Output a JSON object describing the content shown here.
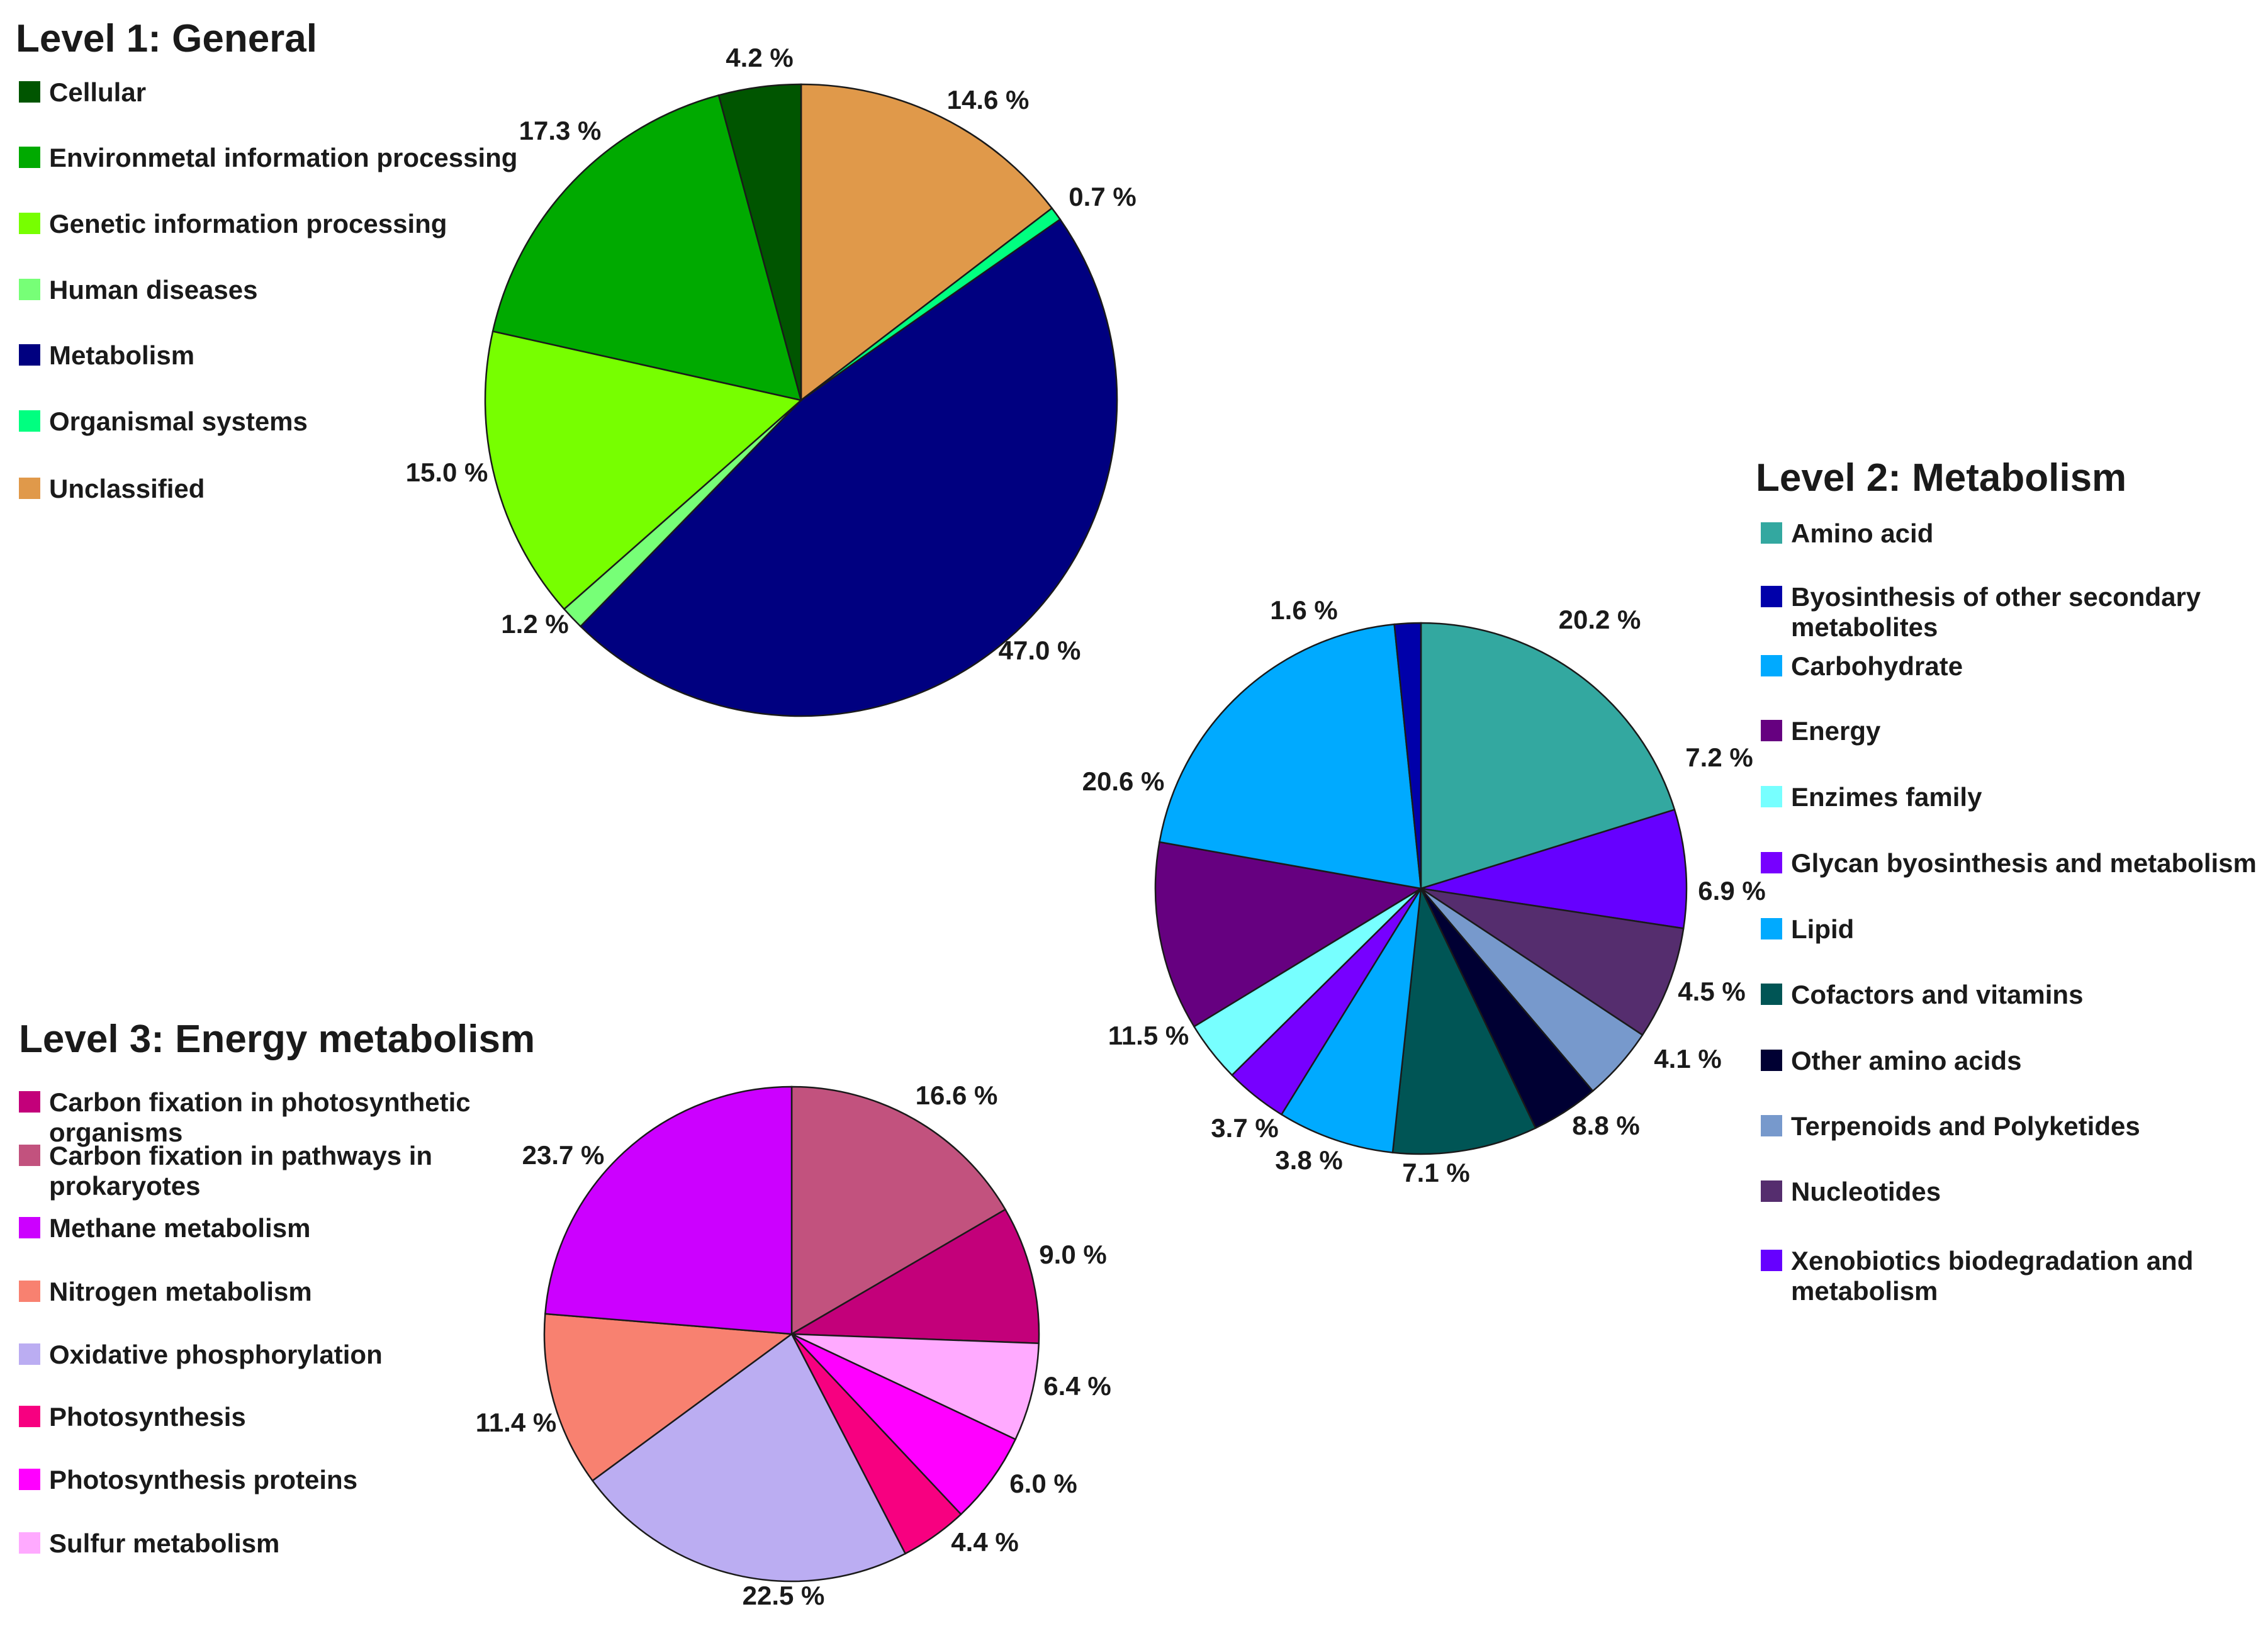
{
  "chart_data": [
    {
      "type": "pie",
      "title": "Level 1: General",
      "categories": [
        "Cellular",
        "Environmetal information processing",
        "Genetic information processing",
        "Human diseases",
        "Metabolism",
        "Organismal systems",
        "Unclassified"
      ],
      "legend": [
        {
          "label": "Cellular",
          "color": "#005500"
        },
        {
          "label": "Environmetal information processing",
          "color": "#00AA00"
        },
        {
          "label": "Genetic information processing",
          "color": "#77FF00"
        },
        {
          "label": "Human diseases",
          "color": "#77FF77"
        },
        {
          "label": "Metabolism",
          "color": "#000080"
        },
        {
          "label": "Organismal systems",
          "color": "#00FF80"
        },
        {
          "label": "Unclassified",
          "color": "#E0994A"
        }
      ],
      "slices": [
        {
          "category": "Unclassified",
          "value": 14.6,
          "label": "14.6 %",
          "color": "#E0994A"
        },
        {
          "category": "Organismal systems",
          "value": 0.7,
          "label": "0.7 %",
          "color": "#00FF80"
        },
        {
          "category": "Metabolism",
          "value": 47.0,
          "label": "47.0 %",
          "color": "#000080"
        },
        {
          "category": "Human diseases",
          "value": 1.2,
          "label": "1.2 %",
          "color": "#77FF77"
        },
        {
          "category": "Genetic information processing",
          "value": 15.0,
          "label": "15.0 %",
          "color": "#77FF00"
        },
        {
          "category": "Environmetal information processing",
          "value": 17.3,
          "label": "17.3 %",
          "color": "#00AA00"
        },
        {
          "category": "Cellular",
          "value": 4.2,
          "label": "4.2 %",
          "color": "#005500"
        }
      ]
    },
    {
      "type": "pie",
      "title": "Level 2: Metabolism",
      "categories": [
        "Amino acid",
        "Byosinthesis of other secondary metabolites",
        "Carbohydrate",
        "Energy",
        "Enzimes family",
        "Glycan byosinthesis and metabolism",
        "Lipid",
        "Cofactors and vitamins",
        "Other amino acids",
        "Terpenoids and Polyketides",
        "Nucleotides",
        "Xenobiotics biodegradation and metabolism"
      ],
      "legend": [
        {
          "label": "Amino acid",
          "color": "#33A8A0"
        },
        {
          "label": "Byosinthesis of other secondary metabolites",
          "color": "#0000AA"
        },
        {
          "label": "Carbohydrate",
          "color": "#00AAFF"
        },
        {
          "label": "Energy",
          "color": "#660080"
        },
        {
          "label": "Enzimes family",
          "color": "#77FFFF"
        },
        {
          "label": "Glycan byosinthesis and metabolism",
          "color": "#7700FF"
        },
        {
          "label": "Lipid",
          "color": "#00AAFF"
        },
        {
          "label": "Cofactors and vitamins",
          "color": "#005555"
        },
        {
          "label": "Other amino acids",
          "color": "#000033"
        },
        {
          "label": "Terpenoids and Polyketides",
          "color": "#7799CC"
        },
        {
          "label": "Nucleotides",
          "color": "#552D6E"
        },
        {
          "label": "Xenobiotics biodegradation and metabolism",
          "color": "#6600FF"
        }
      ],
      "slices": [
        {
          "category": "Amino acid",
          "value": 20.2,
          "label": "20.2 %",
          "color": "#33A8A0"
        },
        {
          "category": "Xenobiotics biodegradation and metabolism",
          "value": 7.2,
          "label": "7.2 %",
          "color": "#6600FF"
        },
        {
          "category": "Nucleotides",
          "value": 6.9,
          "label": "6.9 %",
          "color": "#552D6E"
        },
        {
          "category": "Terpenoids and Polyketides",
          "value": 4.5,
          "label": "4.5 %",
          "color": "#7799CC"
        },
        {
          "category": "Other amino acids",
          "value": 4.1,
          "label": "4.1 %",
          "color": "#000033"
        },
        {
          "category": "Cofactors and vitamins",
          "value": 8.8,
          "label": "8.8 %",
          "color": "#005555"
        },
        {
          "category": "Lipid",
          "value": 7.1,
          "label": "7.1 %",
          "color": "#00AAFF"
        },
        {
          "category": "Glycan byosinthesis and metabolism",
          "value": 3.8,
          "label": "3.8 %",
          "color": "#7700FF"
        },
        {
          "category": "Enzimes family",
          "value": 3.7,
          "label": "3.7 %",
          "color": "#77FFFF"
        },
        {
          "category": "Energy",
          "value": 11.5,
          "label": "11.5 %",
          "color": "#660080"
        },
        {
          "category": "Carbohydrate",
          "value": 20.6,
          "label": "20.6 %",
          "color": "#00AAFF"
        },
        {
          "category": "Byosinthesis of other secondary metabolites",
          "value": 1.6,
          "label": "1.6 %",
          "color": "#0000AA"
        }
      ]
    },
    {
      "type": "pie",
      "title": "Level 3: Energy metabolism",
      "categories": [
        "Carbon fixation in photosynthetic organisms",
        "Carbon fixation in pathways in prokaryotes",
        "Methane metabolism",
        "Nitrogen metabolism",
        "Oxidative phosphorylation",
        "Photosynthesis",
        "Photosynthesis proteins",
        "Sulfur metabolism"
      ],
      "legend": [
        {
          "label": "Carbon fixation in photosynthetic organisms",
          "color": "#C3007A"
        },
        {
          "label": "Carbon fixation in pathways in prokaryotes",
          "color": "#C2527E"
        },
        {
          "label": "Methane metabolism",
          "color": "#CC00FF"
        },
        {
          "label": "Nitrogen metabolism",
          "color": "#F88170"
        },
        {
          "label": "Oxidative phosphorylation",
          "color": "#BBADF2"
        },
        {
          "label": "Photosynthesis",
          "color": "#F70080"
        },
        {
          "label": "Photosynthesis proteins",
          "color": "#FF00FF"
        },
        {
          "label": "Sulfur metabolism",
          "color": "#FFAAFF"
        }
      ],
      "slices": [
        {
          "category": "Carbon fixation in pathways in prokaryotes",
          "value": 16.6,
          "label": "16.6 %",
          "color": "#C2527E"
        },
        {
          "category": "Carbon fixation in photosynthetic organisms",
          "value": 9.0,
          "label": "9.0 %",
          "color": "#C3007A"
        },
        {
          "category": "Sulfur metabolism",
          "value": 6.4,
          "label": "6.4 %",
          "color": "#FFAAFF"
        },
        {
          "category": "Photosynthesis proteins",
          "value": 6.0,
          "label": "6.0 %",
          "color": "#FF00FF"
        },
        {
          "category": "Photosynthesis",
          "value": 4.4,
          "label": "4.4 %",
          "color": "#F70080"
        },
        {
          "category": "Oxidative phosphorylation",
          "value": 22.5,
          "label": "22.5 %",
          "color": "#BBADF2"
        },
        {
          "category": "Nitrogen metabolism",
          "value": 11.4,
          "label": "11.4 %",
          "color": "#F88170"
        },
        {
          "category": "Methane metabolism",
          "value": 23.7,
          "label": "23.7 %",
          "color": "#CC00FF"
        }
      ]
    }
  ]
}
